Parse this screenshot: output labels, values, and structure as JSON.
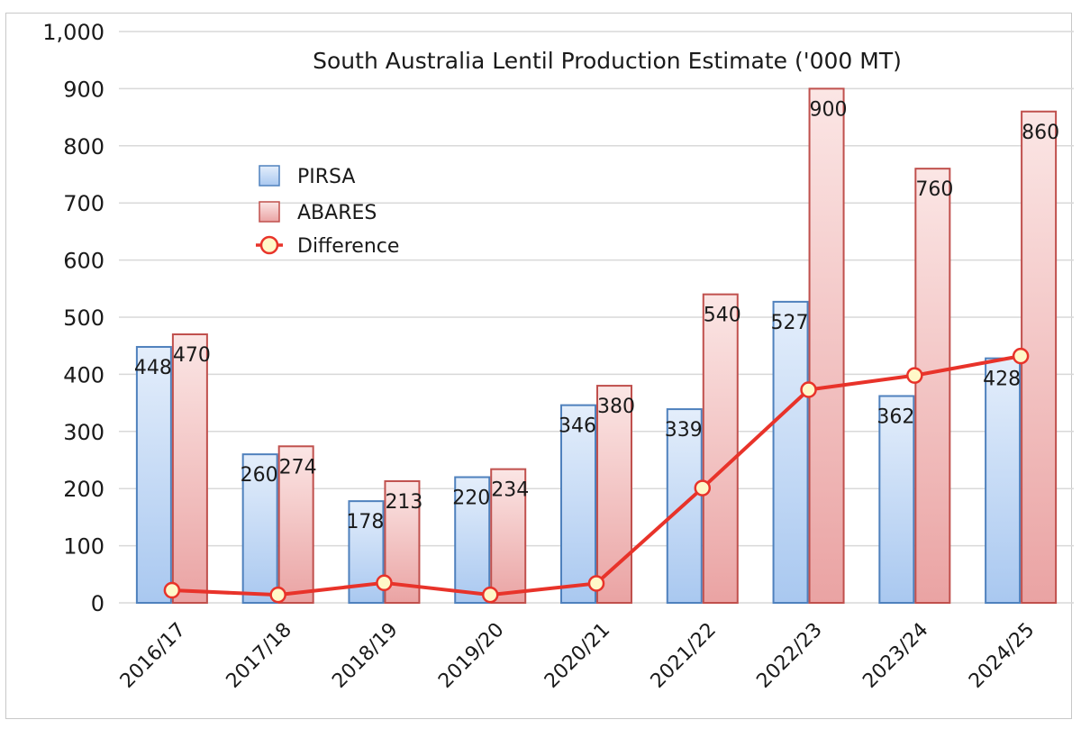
{
  "chart_data": {
    "type": "bar",
    "title": "South Australia Lentil Production Estimate ('000 MT)",
    "categories": [
      "2016/17",
      "2017/18",
      "2018/19",
      "2019/20",
      "2020/21",
      "2021/22",
      "2022/23",
      "2023/24",
      "2024/25"
    ],
    "series": [
      {
        "name": "PIRSA",
        "type": "bar",
        "values": [
          448,
          260,
          178,
          220,
          346,
          339,
          527,
          362,
          428
        ],
        "color": "#4f81bd",
        "fill_top": "#e4eefb",
        "fill_bottom": "#a9c8f0"
      },
      {
        "name": "ABARES",
        "type": "bar",
        "values": [
          470,
          274,
          213,
          234,
          380,
          540,
          900,
          760,
          860
        ],
        "color": "#c0504d",
        "fill_top": "#fbe6e5",
        "fill_bottom": "#eaa3a3"
      },
      {
        "name": "Difference",
        "type": "line",
        "values": [
          22,
          14,
          35,
          14,
          34,
          201,
          373,
          398,
          432
        ],
        "color": "#e8332a",
        "marker_fill": "#fff8c8"
      }
    ],
    "ylim": [
      0,
      1000
    ],
    "yticks": [
      0,
      100,
      200,
      300,
      400,
      500,
      600,
      700,
      800,
      900,
      1000
    ],
    "ytick_labels": [
      "0",
      "100",
      "200",
      "300",
      "400",
      "500",
      "600",
      "700",
      "800",
      "900",
      "1,000"
    ],
    "data_labels": {
      "PIRSA": [
        "448",
        "260",
        "178",
        "220",
        "346",
        "339",
        "527",
        "362",
        "428"
      ],
      "ABARES": [
        "470",
        "274",
        "213",
        "234",
        "380",
        "540",
        "900",
        "760",
        "860"
      ]
    },
    "grid": true,
    "legend": {
      "position": "left",
      "entries": [
        "PIRSA",
        "ABARES",
        "Difference"
      ]
    }
  }
}
